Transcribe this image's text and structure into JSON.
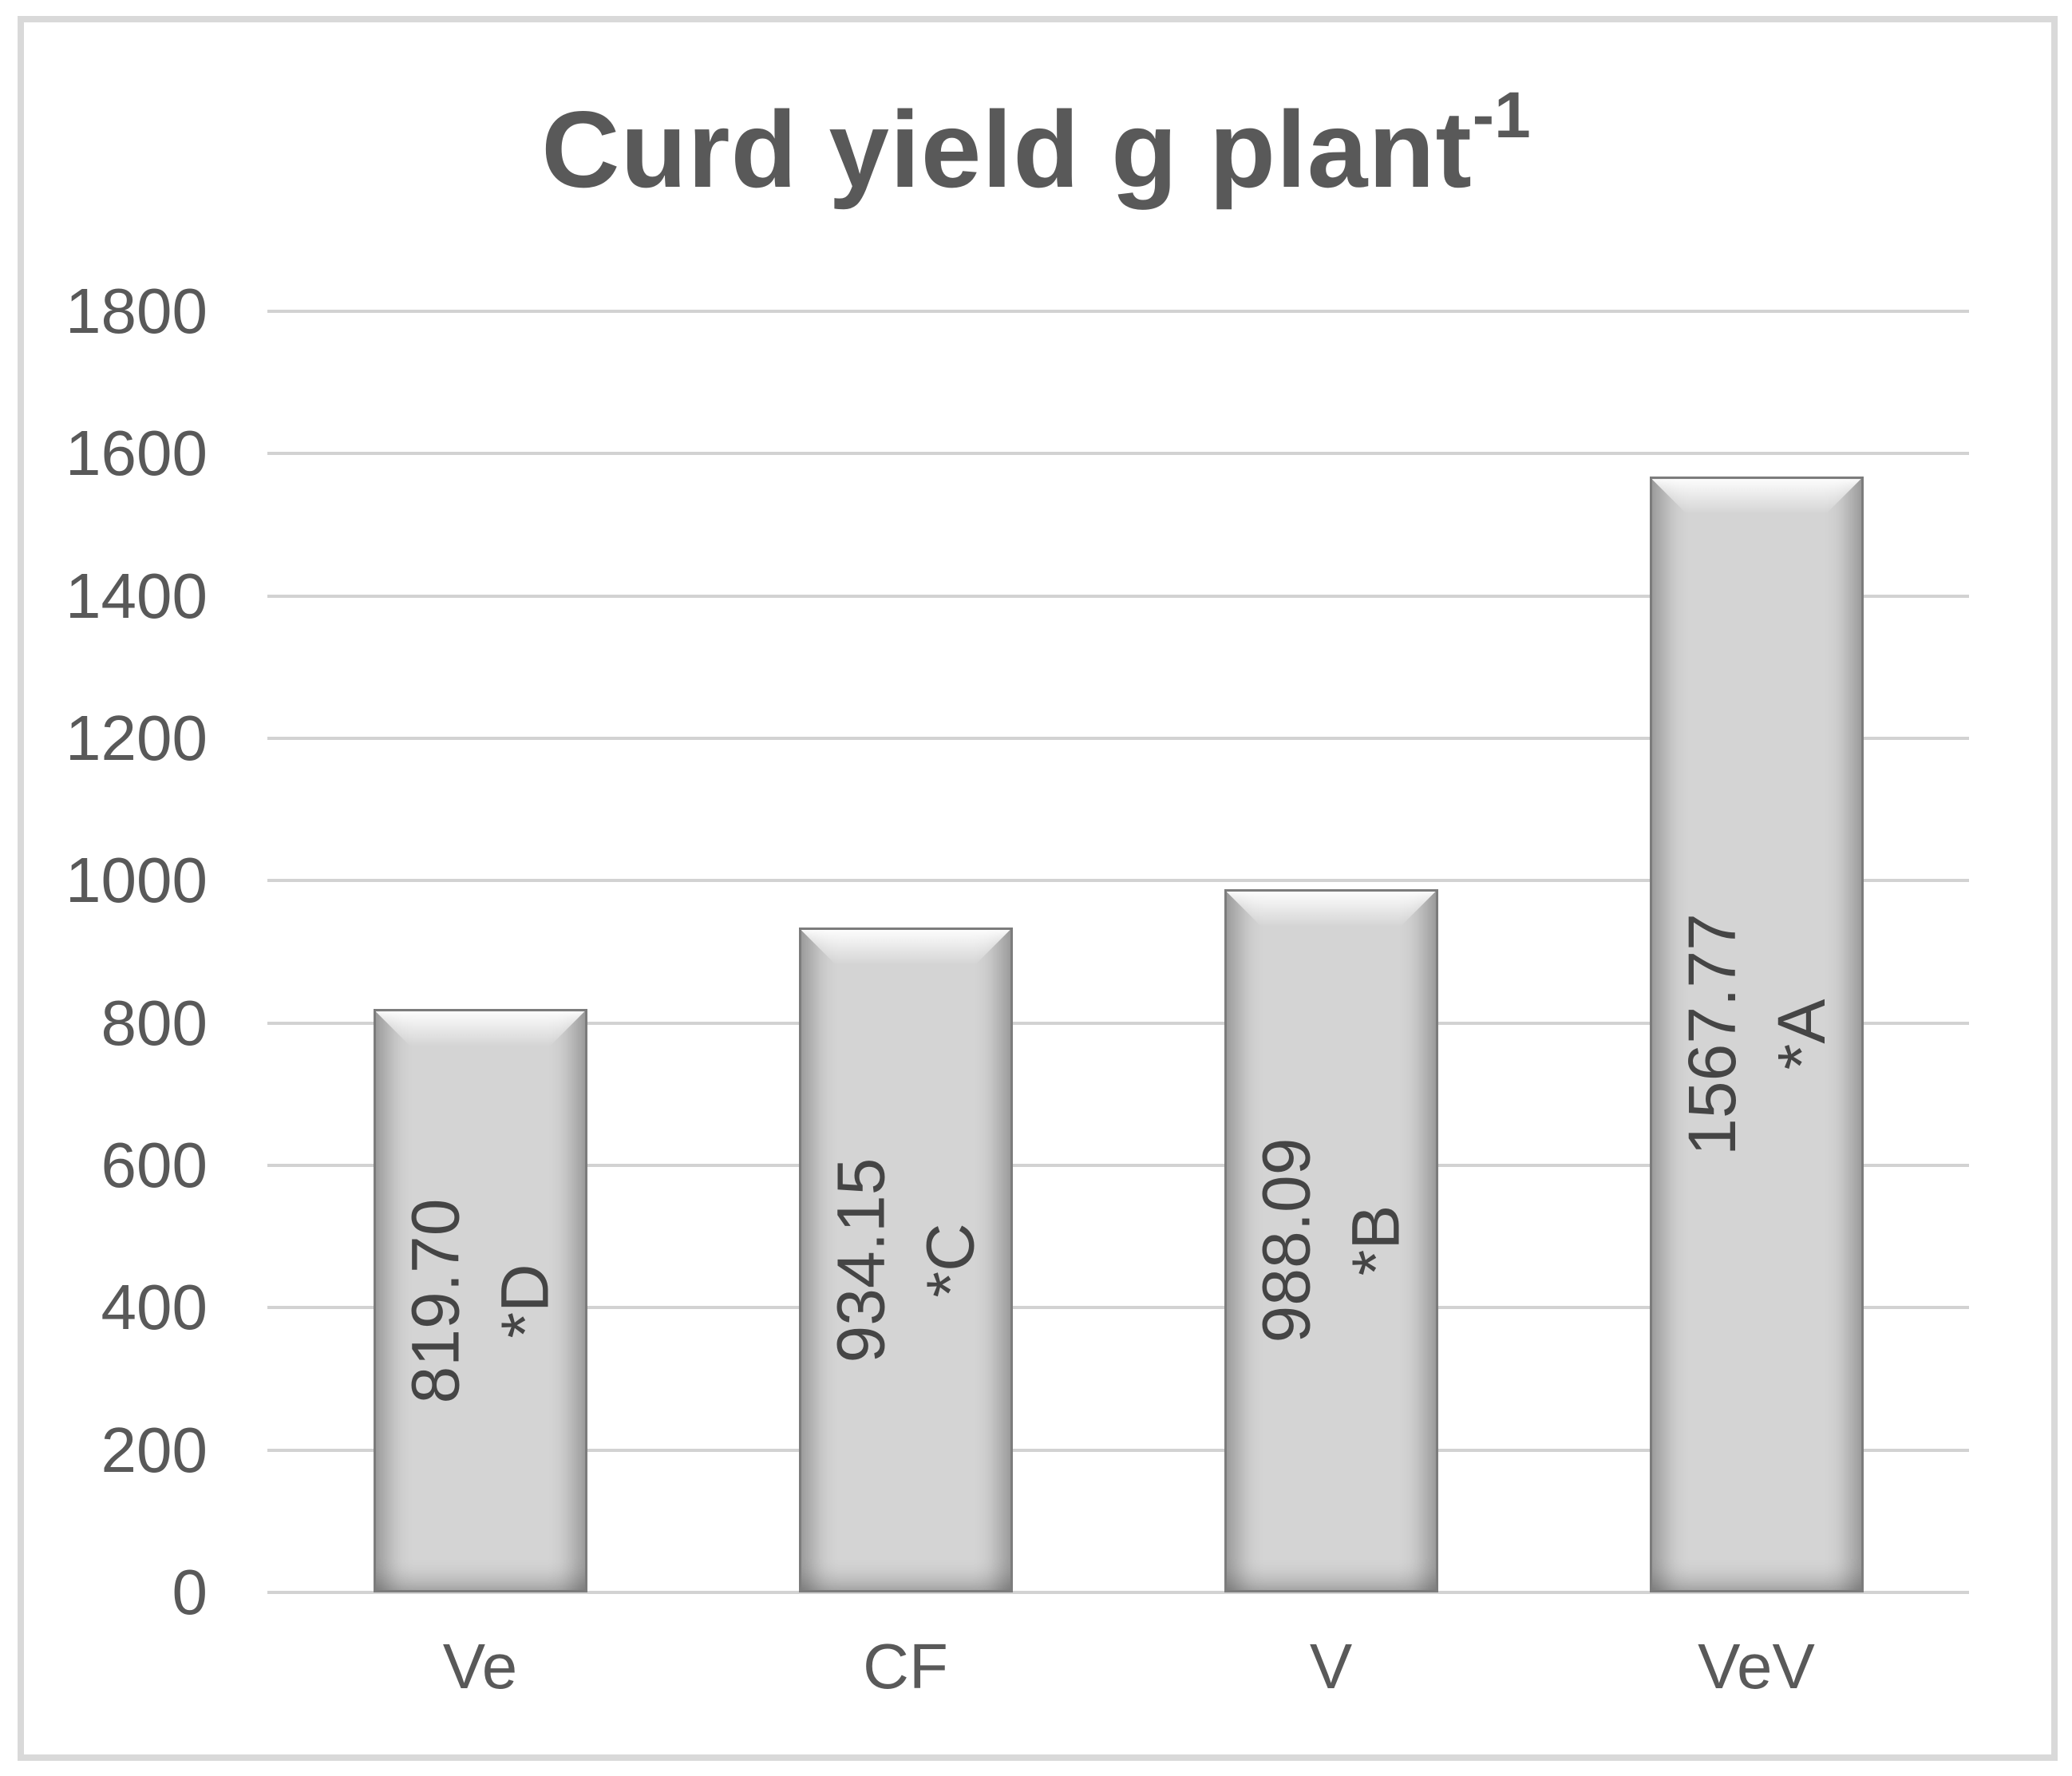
{
  "chart_data": {
    "type": "bar",
    "title": "Curd yield g plant",
    "title_superscript": "-1",
    "categories": [
      "Ve",
      "CF",
      "V",
      "VeV"
    ],
    "values": [
      819.7,
      934.15,
      988.09,
      1567.77
    ],
    "bar_value_labels": [
      "819.70",
      "934.15",
      "988.09",
      "1567.77"
    ],
    "bar_sig_labels": [
      "*D",
      "*C",
      "*B",
      "*A"
    ],
    "ylim": [
      0,
      1800
    ],
    "ytick_step": 200,
    "ytick_labels": [
      "0",
      "200",
      "400",
      "600",
      "800",
      "1000",
      "1200",
      "1400",
      "1600",
      "1800"
    ],
    "xlabel": "",
    "ylabel": "",
    "grid": "horizontal",
    "legend_position": "none",
    "colors": {
      "bar_fill": "#d4d4d4",
      "bar_border": "#7c7c7c",
      "gridline": "#d2d2d2",
      "axis_text": "#595959",
      "title_text": "#595959",
      "bar_label_text": "#454545",
      "frame_border": "#d9d9d9",
      "background": "#ffffff"
    }
  }
}
